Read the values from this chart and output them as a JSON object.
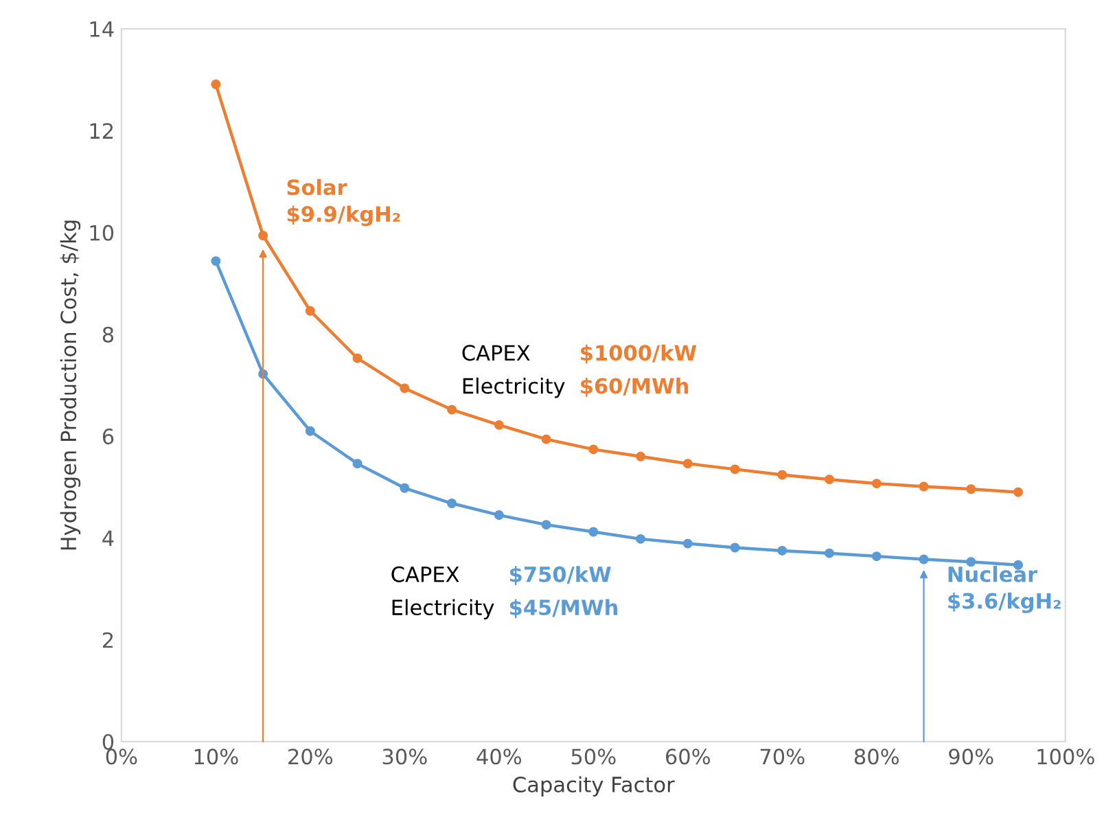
{
  "chart_data": {
    "type": "line",
    "xlabel": "Capacity Factor",
    "ylabel": "Hydrogen Production Cost, $/kg",
    "x": [
      10,
      15,
      20,
      25,
      30,
      35,
      40,
      45,
      50,
      55,
      60,
      65,
      70,
      75,
      80,
      85,
      90,
      95
    ],
    "series": [
      {
        "color": "#ed7d31",
        "values": [
          12.91,
          9.94,
          8.46,
          7.53,
          6.94,
          6.52,
          6.22,
          5.94,
          5.74,
          5.6,
          5.46,
          5.35,
          5.24,
          5.15,
          5.07,
          5.01,
          4.96,
          4.9
        ]
      },
      {
        "color": "#5b9bd5",
        "values": [
          9.44,
          7.22,
          6.1,
          5.46,
          4.98,
          4.68,
          4.45,
          4.26,
          4.12,
          3.98,
          3.89,
          3.81,
          3.75,
          3.7,
          3.64,
          3.58,
          3.53,
          3.47
        ]
      }
    ],
    "xlim": [
      0,
      100
    ],
    "xticks": [
      {
        "value": 0,
        "label": "0%"
      },
      {
        "value": 10,
        "label": "10%"
      },
      {
        "value": 20,
        "label": "20%"
      },
      {
        "value": 30,
        "label": "30%"
      },
      {
        "value": 40,
        "label": "40%"
      },
      {
        "value": 50,
        "label": "50%"
      },
      {
        "value": 60,
        "label": "60%"
      },
      {
        "value": 70,
        "label": "70%"
      },
      {
        "value": 80,
        "label": "80%"
      },
      {
        "value": 90,
        "label": "90%"
      },
      {
        "value": 100,
        "label": "100%"
      }
    ],
    "ylim": [
      0,
      14
    ],
    "yticks": [
      0,
      2,
      4,
      6,
      8,
      10,
      12,
      14
    ],
    "marker": "circle",
    "line_style": "solid",
    "grid": false,
    "legend": false,
    "annotations": [
      {
        "text": "Solar\n$9.9/kgH₂",
        "x": 15,
        "y": 9.9
      },
      {
        "text": "Nuclear\n$3.6/kgH₂",
        "x": 85,
        "y": 3.6
      },
      "CAPEX",
      "$1000/kW",
      "Electricity",
      "$60/MWh",
      "CAPEX",
      "$750/kW",
      "Electricity",
      "$45/MWh"
    ]
  }
}
